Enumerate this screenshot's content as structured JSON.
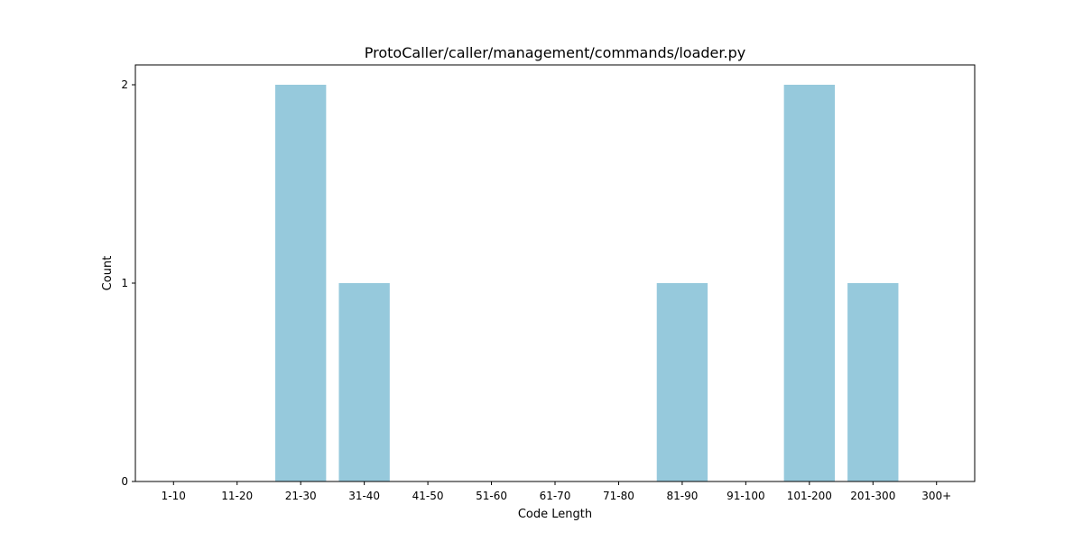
{
  "chart_data": {
    "type": "bar",
    "title": "ProtoCaller/caller/management/commands/loader.py",
    "xlabel": "Code Length",
    "ylabel": "Count",
    "categories": [
      "1-10",
      "11-20",
      "21-30",
      "31-40",
      "41-50",
      "51-60",
      "61-70",
      "71-80",
      "81-90",
      "91-100",
      "101-200",
      "201-300",
      "300+"
    ],
    "values": [
      0,
      0,
      2,
      1,
      0,
      0,
      0,
      0,
      1,
      0,
      2,
      1,
      0
    ],
    "ylim": [
      0,
      2.1
    ],
    "yticks": [
      0,
      1,
      2
    ],
    "grid": false,
    "bar_color": "#96c9dc"
  }
}
